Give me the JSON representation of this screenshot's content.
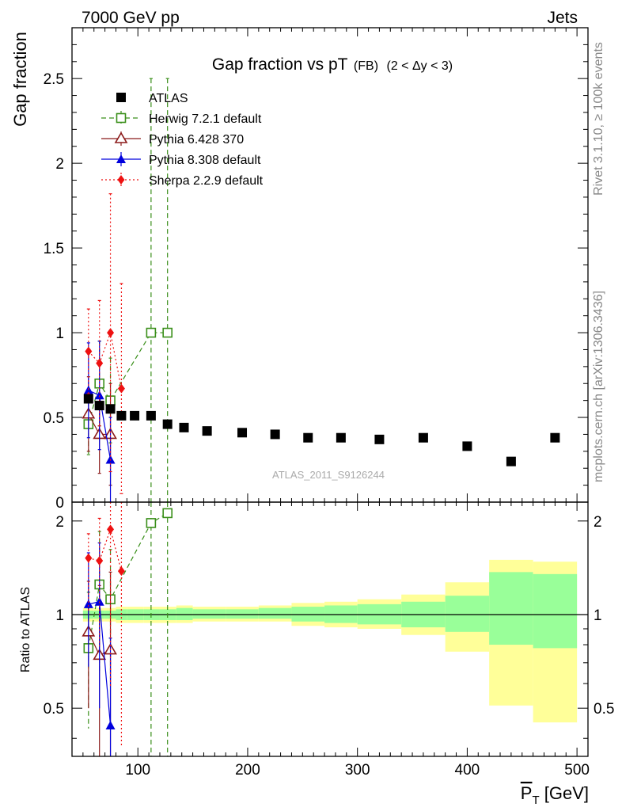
{
  "header": {
    "left": "7000 GeV pp",
    "right": "Jets"
  },
  "side_labels": {
    "rivet": "Rivet 3.1.10, ≥ 100k events",
    "mcplots": "mcplots.cern.ch [arXiv:1306.3436]"
  },
  "colors": {
    "atlas": "#000000",
    "herwig": "#3a8f1a",
    "pythia6": "#8b1a1a",
    "pythia8": "#0000dd",
    "sherpa": "#ee1111",
    "band_outer": "#ffff99",
    "band_inner": "#99ff99"
  },
  "chart_data": [
    {
      "type": "scatter",
      "title_main": "Gap fraction vs pT",
      "title_sub": "(FB)",
      "title_cond": "(2 < Δy < 3)",
      "ylabel": "Gap fraction",
      "watermark": "ATLAS_2011_S9126244",
      "ylim": [
        0,
        2.8
      ],
      "xlim": [
        40,
        510
      ],
      "yticks": [
        0,
        0.5,
        1,
        1.5,
        2,
        2.5
      ],
      "ytick_labels": [
        "0",
        "0.5",
        "1",
        "1.5",
        "2",
        "2.5"
      ],
      "legend_position": "top-left",
      "series": [
        {
          "name": "ATLAS",
          "marker": "square-filled",
          "x": [
            55,
            65,
            75,
            85,
            97,
            112,
            127,
            142,
            163,
            195,
            225,
            255,
            285,
            320,
            360,
            400,
            440,
            480
          ],
          "y": [
            0.61,
            0.57,
            0.55,
            0.51,
            0.51,
            0.51,
            0.46,
            0.44,
            0.42,
            0.41,
            0.4,
            0.38,
            0.38,
            0.37,
            0.38,
            0.33,
            0.24,
            0.38
          ]
        },
        {
          "name": "Herwig 7.2.1 default",
          "marker": "square-open",
          "line": "dashed",
          "x": [
            55,
            65,
            75,
            112,
            127
          ],
          "y": [
            0.46,
            0.7,
            0.6,
            1.0,
            1.0
          ],
          "err": [
            0.18,
            0.25,
            0.25,
            1.5,
            1.5
          ]
        },
        {
          "name": "Pythia 6.428 370",
          "marker": "triangle-open",
          "line": "solid",
          "x": [
            55,
            65,
            75
          ],
          "y": [
            0.52,
            0.4,
            0.4
          ],
          "err": [
            0.22,
            0.23,
            0.3
          ]
        },
        {
          "name": "Pythia 8.308 default",
          "marker": "triangle-filled",
          "line": "solid",
          "x": [
            55,
            65,
            75
          ],
          "y": [
            0.66,
            0.63,
            0.25
          ],
          "err": [
            0.28,
            0.32,
            0.25
          ]
        },
        {
          "name": "Sherpa 2.2.9 default",
          "marker": "diamond-filled",
          "line": "dotted",
          "x": [
            55,
            65,
            75,
            85
          ],
          "y": [
            0.89,
            0.82,
            1.0,
            0.67
          ],
          "err": [
            0.25,
            0.37,
            0.82,
            0.62
          ]
        }
      ]
    },
    {
      "type": "scatter",
      "ylabel": "Ratio to ATLAS",
      "xlabel": "P_T [GeV]",
      "xlim": [
        40,
        510
      ],
      "ylim": [
        0.35,
        2.3
      ],
      "xticks": [
        100,
        200,
        300,
        400,
        500
      ],
      "xtick_labels": [
        "100",
        "200",
        "300",
        "400",
        "500"
      ],
      "yticks": [
        0.5,
        1,
        2
      ],
      "ytick_labels": [
        "0.5",
        "1",
        "2"
      ],
      "bands": {
        "edges": [
          50,
          60,
          70,
          80,
          90,
          105,
          120,
          135,
          150,
          180,
          210,
          240,
          270,
          300,
          340,
          380,
          420,
          460,
          500
        ],
        "outer_lo": [
          0.95,
          0.95,
          0.95,
          0.94,
          0.94,
          0.94,
          0.94,
          0.94,
          0.95,
          0.95,
          0.95,
          0.92,
          0.91,
          0.9,
          0.86,
          0.76,
          0.51,
          0.45
        ],
        "outer_hi": [
          1.05,
          1.05,
          1.05,
          1.06,
          1.06,
          1.06,
          1.06,
          1.07,
          1.06,
          1.06,
          1.07,
          1.09,
          1.1,
          1.12,
          1.16,
          1.27,
          1.5,
          1.48
        ],
        "inner_lo": [
          0.97,
          0.97,
          0.97,
          0.96,
          0.96,
          0.96,
          0.96,
          0.96,
          0.97,
          0.97,
          0.97,
          0.95,
          0.94,
          0.93,
          0.91,
          0.88,
          0.8,
          0.78
        ],
        "inner_hi": [
          1.03,
          1.03,
          1.03,
          1.04,
          1.04,
          1.04,
          1.04,
          1.05,
          1.04,
          1.04,
          1.05,
          1.06,
          1.07,
          1.08,
          1.1,
          1.15,
          1.37,
          1.35
        ]
      },
      "series": [
        {
          "name": "Herwig 7.2.1 default",
          "x": [
            55,
            65,
            75,
            112,
            127
          ],
          "y": [
            0.78,
            1.25,
            1.12,
            1.97,
            2.12
          ],
          "err_lo": [
            0.35,
            0.6,
            0.5,
            2.0,
            2.0
          ],
          "err_hi": [
            0.4,
            0.6,
            0.5,
            1.0,
            1.0
          ]
        },
        {
          "name": "Pythia 6.428 370",
          "x": [
            55,
            65,
            75
          ],
          "y": [
            0.88,
            0.74,
            0.77
          ],
          "err_lo": [
            0.38,
            0.45,
            0.5
          ],
          "err_hi": [
            0.4,
            0.5,
            0.6
          ]
        },
        {
          "name": "Pythia 8.308 default",
          "x": [
            55,
            65,
            75
          ],
          "y": [
            1.08,
            1.1,
            0.44
          ],
          "err_lo": [
            0.4,
            0.6,
            0.3
          ],
          "err_hi": [
            0.5,
            0.6,
            0.4
          ]
        },
        {
          "name": "Sherpa 2.2.9 default",
          "x": [
            55,
            65,
            75,
            85
          ],
          "y": [
            1.52,
            1.49,
            1.88,
            1.38
          ],
          "err_lo": [
            0.5,
            0.7,
            1.3,
            1.0
          ],
          "err_hi": [
            0.3,
            0.55,
            1.0,
            1.0
          ]
        }
      ]
    }
  ]
}
